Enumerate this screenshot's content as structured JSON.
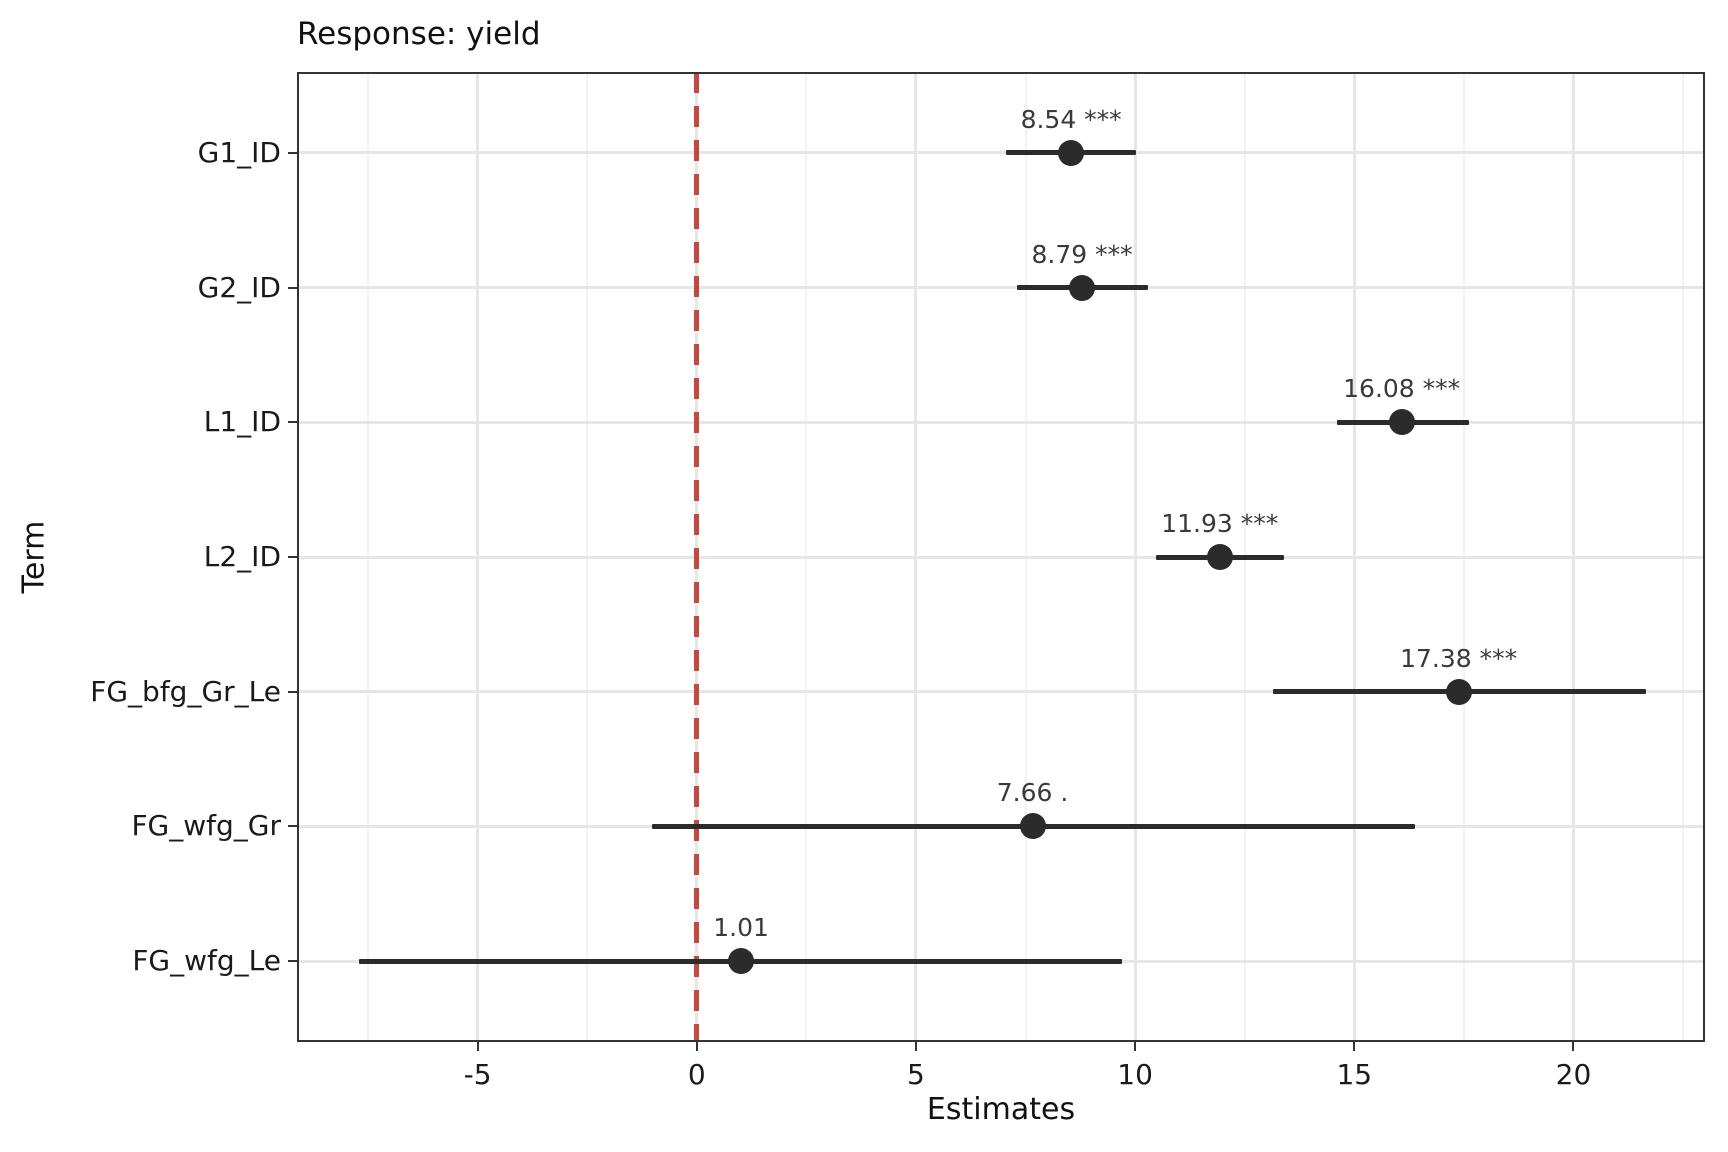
{
  "title": "Response: yield",
  "chart_data": {
    "type": "scatter",
    "subtype": "dot-whisker-forest",
    "title": "Response: yield",
    "xlabel": "Estimates",
    "ylabel": "Term",
    "xlim": [
      -9.12,
      23.0
    ],
    "x_ticks": [
      -5,
      0,
      5,
      10,
      15,
      20
    ],
    "x_minor_ticks": [
      -7.5,
      -2.5,
      2.5,
      7.5,
      12.5,
      17.5,
      22.5
    ],
    "grid": "major-and-minor-vertical, major-horizontal",
    "legend": "none",
    "vline": {
      "x": 0,
      "style": "dashed",
      "color": "#c8493c"
    },
    "point_color": "#2b2b2b",
    "categories": [
      "G1_ID",
      "G2_ID",
      "L1_ID",
      "L2_ID",
      "FG_bfg_Gr_Le",
      "FG_wfg_Gr",
      "FG_wfg_Le"
    ],
    "estimates": [
      8.54,
      8.79,
      16.08,
      11.93,
      17.38,
      7.66,
      1.01
    ],
    "ci_low": [
      7.06,
      7.3,
      14.6,
      10.47,
      13.15,
      -1.02,
      -7.7
    ],
    "ci_high": [
      10.02,
      10.3,
      17.62,
      13.4,
      21.66,
      16.38,
      9.7
    ],
    "significance": [
      "***",
      "***",
      "***",
      "***",
      "***",
      ".",
      ""
    ],
    "point_labels": [
      "8.54 ***",
      "8.79 ***",
      "16.08 ***",
      "11.93 ***",
      "17.38 ***",
      "7.66 .",
      "1.01"
    ]
  }
}
